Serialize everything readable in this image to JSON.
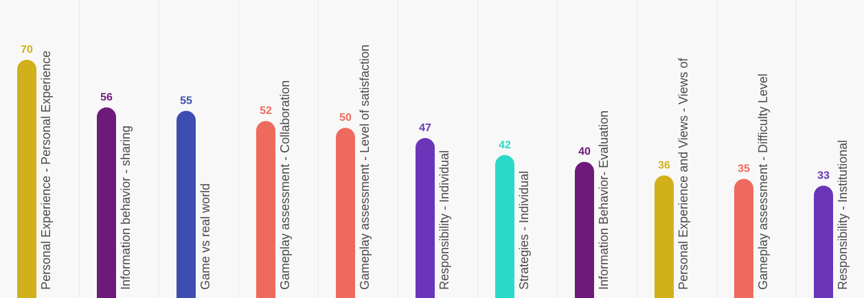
{
  "chart_data": {
    "type": "bar",
    "orientation": "vertical",
    "categories": [
      "Personal Experience - Personal Experience",
      "Information behavior - sharing",
      "Game vs real world",
      "Gameplay assessment - Collaboration",
      "Gameplay assessment - Level of satisfaction",
      "Responsibility - Individual",
      "Strategies - Individual",
      "Information Behavior- Evaluation",
      "Personal Experience and Views - Views of",
      "Gameplay assessment - Difficulty Level",
      "Responsibility - Institutional"
    ],
    "values": [
      70,
      56,
      55,
      52,
      50,
      47,
      42,
      40,
      36,
      35,
      33
    ],
    "colors": [
      "#d1b01c",
      "#6e1a7a",
      "#3d4db2",
      "#ef6a5e",
      "#ef6a5e",
      "#6a35b8",
      "#2bd9c8",
      "#6e1a7a",
      "#d1b01c",
      "#ef6a5e",
      "#6a35b8"
    ],
    "ylim": [
      0,
      90
    ],
    "grid": false,
    "legend": "none",
    "label_color": "#4a4a4a"
  }
}
